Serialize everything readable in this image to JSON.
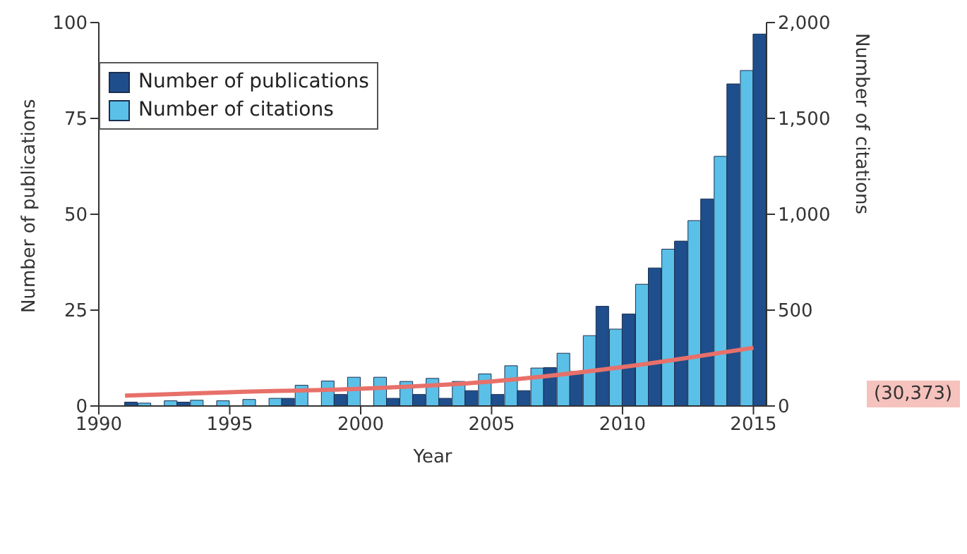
{
  "chart_data": {
    "type": "bar",
    "xlabel": "Year",
    "ylabel": "Number of publications",
    "y2label": "Number of citations",
    "x": [
      1991,
      1992,
      1993,
      1994,
      1995,
      1996,
      1997,
      1998,
      1999,
      2000,
      2001,
      2002,
      2003,
      2004,
      2005,
      2006,
      2007,
      2008,
      2009,
      2010,
      2011,
      2012,
      2013,
      2014,
      2015
    ],
    "series": [
      {
        "name": "Number of publications",
        "color": "#1f4e8c",
        "values": [
          1,
          0,
          1,
          0,
          0,
          0,
          2,
          0,
          3,
          0,
          2,
          3,
          2,
          4,
          3,
          4,
          10,
          9,
          26,
          24,
          36,
          43,
          54,
          84,
          97
        ]
      },
      {
        "name": "Number of citations",
        "color": "#5bc0e8",
        "axis": "y2",
        "values": [
          0,
          15,
          27,
          30,
          27,
          34,
          40,
          108,
          130,
          150,
          150,
          128,
          144,
          128,
          167,
          210,
          198,
          275,
          367,
          401,
          635,
          818,
          967,
          1302,
          1750
        ]
      },
      {
        "type": "line",
        "color": "#e8706a",
        "axis": "y2",
        "x": [
          1991,
          1995,
          2000,
          2005,
          2010,
          2015
        ],
        "values": [
          54,
          72,
          90,
          128,
          203,
          304
        ]
      }
    ],
    "xlim": [
      1990,
      2015.5
    ],
    "xticks": [
      1990,
      1995,
      2000,
      2005,
      2010,
      2015
    ],
    "ylim": [
      0,
      100
    ],
    "yticks": [
      0,
      25,
      50,
      75,
      100
    ],
    "y2lim": [
      0,
      2000
    ],
    "y2ticks": [
      0,
      500,
      {
        "value": 1000,
        "label": "1,000"
      },
      {
        "value": 1500,
        "label": "1,500"
      },
      {
        "value": 2000,
        "label": "2,000"
      }
    ],
    "annotations": [
      "(30,373)"
    ],
    "legend": "top left",
    "grid": false,
    "marker": "none",
    "line_style": "solid"
  }
}
